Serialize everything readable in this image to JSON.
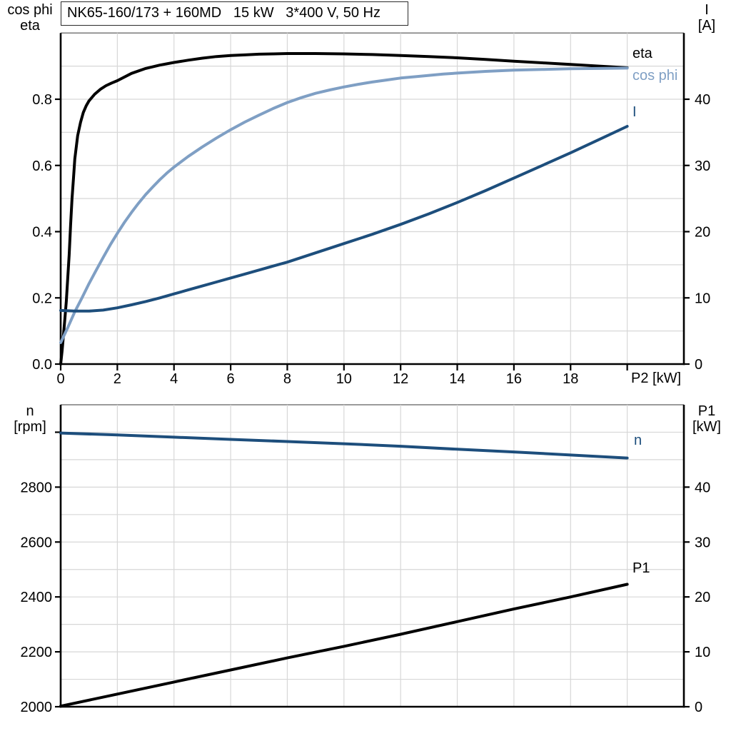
{
  "colors": {
    "background": "#ffffff",
    "axis": "#000000",
    "grid": "#d7d7d7",
    "frame": "#7a7a7a",
    "dark_blue": "#1d4e7c",
    "light_blue": "#7f9fc4",
    "black": "#000000"
  },
  "chart_data": [
    {
      "id": "upper",
      "type": "line",
      "title": "NK65-160/173 + 160MD   15 kW   3*400 V, 50 Hz",
      "x_axis": {
        "label": "P2 [kW]",
        "min": 0,
        "max": 22,
        "grid_step": 2,
        "tick_values": [
          0,
          2,
          4,
          6,
          8,
          10,
          12,
          14,
          16,
          18
        ],
        "tick_labels": [
          "0",
          "2",
          "4",
          "6",
          "8",
          "10",
          "12",
          "14",
          "16",
          "18"
        ],
        "unlabeled_ticks": [
          20
        ]
      },
      "left_axis": {
        "title1": "cos phi",
        "title2": "eta",
        "min": 0,
        "max": 1.0,
        "grid_step": 0.1,
        "tick_values": [
          0,
          0.2,
          0.4,
          0.6,
          0.8
        ],
        "tick_labels": [
          "0.0",
          "0.2",
          "0.4",
          "0.6",
          "0.8"
        ],
        "unlabeled_ticks": []
      },
      "right_axis": {
        "title1": "I",
        "title2": "[A]",
        "min": 0,
        "max": 50,
        "grid_step": 5,
        "tick_values": [
          0,
          10,
          20,
          30,
          40
        ],
        "tick_labels": [
          "0",
          "10",
          "20",
          "30",
          "40"
        ],
        "unlabeled_ticks": []
      },
      "series": [
        {
          "key": "eta",
          "name": "eta",
          "axis": "left",
          "color": "#000000",
          "points": [
            [
              0,
              0
            ],
            [
              0.05,
              0.04
            ],
            [
              0.1,
              0.09
            ],
            [
              0.15,
              0.14
            ],
            [
              0.2,
              0.19
            ],
            [
              0.25,
              0.26
            ],
            [
              0.3,
              0.33
            ],
            [
              0.35,
              0.42
            ],
            [
              0.4,
              0.5
            ],
            [
              0.45,
              0.56
            ],
            [
              0.5,
              0.62
            ],
            [
              0.6,
              0.69
            ],
            [
              0.7,
              0.73
            ],
            [
              0.8,
              0.76
            ],
            [
              0.9,
              0.78
            ],
            [
              1,
              0.795
            ],
            [
              1.2,
              0.815
            ],
            [
              1.4,
              0.83
            ],
            [
              1.6,
              0.841
            ],
            [
              1.8,
              0.849
            ],
            [
              2,
              0.856
            ],
            [
              2.5,
              0.878
            ],
            [
              3,
              0.893
            ],
            [
              3.5,
              0.903
            ],
            [
              4,
              0.911
            ],
            [
              4.5,
              0.918
            ],
            [
              5,
              0.924
            ],
            [
              5.5,
              0.929
            ],
            [
              6,
              0.932
            ],
            [
              6.5,
              0.934
            ],
            [
              7,
              0.936
            ],
            [
              7.5,
              0.937
            ],
            [
              8,
              0.938
            ],
            [
              9,
              0.938
            ],
            [
              10,
              0.937
            ],
            [
              11,
              0.935
            ],
            [
              12,
              0.932
            ],
            [
              13,
              0.929
            ],
            [
              14,
              0.925
            ],
            [
              15,
              0.92
            ],
            [
              16,
              0.915
            ],
            [
              17,
              0.91
            ],
            [
              18,
              0.905
            ],
            [
              19,
              0.9
            ],
            [
              20,
              0.895
            ]
          ]
        },
        {
          "key": "cos-phi",
          "name": "cos phi",
          "axis": "left",
          "color": "#7f9fc4",
          "points": [
            [
              0,
              0.065
            ],
            [
              0.25,
              0.11
            ],
            [
              0.5,
              0.158
            ],
            [
              0.75,
              0.2
            ],
            [
              1,
              0.243
            ],
            [
              1.25,
              0.283
            ],
            [
              1.5,
              0.322
            ],
            [
              1.75,
              0.36
            ],
            [
              2,
              0.395
            ],
            [
              2.25,
              0.428
            ],
            [
              2.5,
              0.458
            ],
            [
              2.75,
              0.486
            ],
            [
              3,
              0.512
            ],
            [
              3.25,
              0.535
            ],
            [
              3.5,
              0.557
            ],
            [
              3.75,
              0.577
            ],
            [
              4,
              0.595
            ],
            [
              4.5,
              0.627
            ],
            [
              5,
              0.656
            ],
            [
              5.5,
              0.683
            ],
            [
              6,
              0.708
            ],
            [
              6.5,
              0.731
            ],
            [
              7,
              0.752
            ],
            [
              7.5,
              0.772
            ],
            [
              8,
              0.79
            ],
            [
              8.5,
              0.805
            ],
            [
              9,
              0.818
            ],
            [
              9.5,
              0.828
            ],
            [
              10,
              0.837
            ],
            [
              10.5,
              0.845
            ],
            [
              11,
              0.852
            ],
            [
              11.5,
              0.858
            ],
            [
              12,
              0.864
            ],
            [
              12.5,
              0.868
            ],
            [
              13,
              0.872
            ],
            [
              13.5,
              0.876
            ],
            [
              14,
              0.879
            ],
            [
              15,
              0.884
            ],
            [
              16,
              0.888
            ],
            [
              17,
              0.89
            ],
            [
              18,
              0.892
            ],
            [
              19,
              0.893
            ],
            [
              20,
              0.894
            ]
          ]
        },
        {
          "key": "current",
          "name": "I",
          "axis": "right",
          "color": "#1d4e7c",
          "points": [
            [
              0,
              8.1
            ],
            [
              0.5,
              8
            ],
            [
              1,
              8
            ],
            [
              1.5,
              8.15
            ],
            [
              2,
              8.5
            ],
            [
              2.5,
              8.95
            ],
            [
              3,
              9.45
            ],
            [
              3.5,
              10
            ],
            [
              4,
              10.6
            ],
            [
              4.5,
              11.2
            ],
            [
              5,
              11.8
            ],
            [
              5.5,
              12.4
            ],
            [
              6,
              13
            ],
            [
              6.5,
              13.6
            ],
            [
              7,
              14.2
            ],
            [
              7.5,
              14.8
            ],
            [
              8,
              15.4
            ],
            [
              8.5,
              16.1
            ],
            [
              9,
              16.8
            ],
            [
              9.5,
              17.5
            ],
            [
              10,
              18.2
            ],
            [
              11,
              19.6
            ],
            [
              12,
              21.1
            ],
            [
              13,
              22.7
            ],
            [
              14,
              24.4
            ],
            [
              15,
              26.2
            ],
            [
              16,
              28.1
            ],
            [
              17,
              30
            ],
            [
              18,
              31.9
            ],
            [
              19,
              33.9
            ],
            [
              20,
              35.9
            ]
          ]
        }
      ]
    },
    {
      "id": "lower",
      "type": "line",
      "title": "",
      "x_axis": {
        "label": "",
        "min": 0,
        "max": 22,
        "grid_step": 2,
        "tick_values": [],
        "tick_labels": [],
        "unlabeled_ticks": []
      },
      "left_axis": {
        "title1": "n",
        "title2": "[rpm]",
        "min": 2000,
        "max": 3100,
        "grid_step": 100,
        "tick_values": [
          2000,
          2200,
          2400,
          2600,
          2800
        ],
        "tick_labels": [
          "2000",
          "2200",
          "2400",
          "2600",
          "2800"
        ],
        "unlabeled_ticks": [
          3000
        ]
      },
      "right_axis": {
        "title1": "P1",
        "title2": "[kW]",
        "min": 0,
        "max": 55,
        "grid_step": 5,
        "tick_values": [
          0,
          10,
          20,
          30,
          40
        ],
        "tick_labels": [
          "0",
          "10",
          "20",
          "30",
          "40"
        ],
        "unlabeled_ticks": []
      },
      "series": [
        {
          "key": "speed",
          "name": "n",
          "axis": "left",
          "color": "#1d4e7c",
          "points": [
            [
              0,
              2997
            ],
            [
              2,
              2990
            ],
            [
              4,
              2982
            ],
            [
              6,
              2974
            ],
            [
              8,
              2966
            ],
            [
              10,
              2958
            ],
            [
              12,
              2949
            ],
            [
              14,
              2938
            ],
            [
              16,
              2928
            ],
            [
              18,
              2917
            ],
            [
              20,
              2906
            ]
          ]
        },
        {
          "key": "p1",
          "name": "P1",
          "axis": "right",
          "color": "#000000",
          "points": [
            [
              0,
              0.1
            ],
            [
              2,
              2.3
            ],
            [
              4,
              4.5
            ],
            [
              6,
              6.7
            ],
            [
              8,
              8.9
            ],
            [
              10,
              11
            ],
            [
              12,
              13.2
            ],
            [
              14,
              15.5
            ],
            [
              16,
              17.8
            ],
            [
              18,
              20
            ],
            [
              20,
              22.3
            ]
          ]
        }
      ]
    }
  ]
}
